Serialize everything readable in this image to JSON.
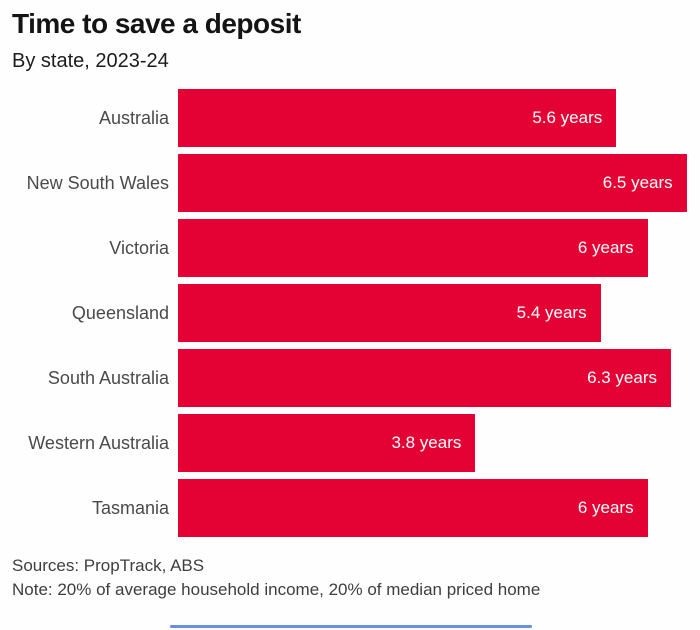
{
  "header": {
    "title": "Time to save a deposit",
    "subtitle": "By state, 2023-24"
  },
  "chart_data": {
    "type": "bar",
    "orientation": "horizontal",
    "title": "Time to save a deposit",
    "subtitle": "By state, 2023-24",
    "categories": [
      "Australia",
      "New South Wales",
      "Victoria",
      "Queensland",
      "South Australia",
      "Western Australia",
      "Tasmania"
    ],
    "values": [
      5.6,
      6.5,
      6,
      5.4,
      6.3,
      3.8,
      6
    ],
    "value_labels": [
      "5.6 years",
      "6.5 years",
      "6 years",
      "5.4 years",
      "6.3 years",
      "3.8 years",
      "6 years"
    ],
    "unit": "years",
    "xlabel": "",
    "ylabel": "",
    "xlim": [
      0,
      6.67
    ],
    "grid": false,
    "legend": false,
    "bar_color": "#e40234",
    "value_label_color": "#ffffff"
  },
  "footer": {
    "sources": "Sources: PropTrack, ABS",
    "note": "Note: 20% of average household income, 20% of median priced home"
  },
  "colors": {
    "bar_red": "#e40234",
    "title_text": "#141414",
    "category_text": "#4a4a4a",
    "footer_text": "#3e3e3e",
    "bottom_line_blue": "#4c7ed8",
    "background": "#fefefe"
  }
}
